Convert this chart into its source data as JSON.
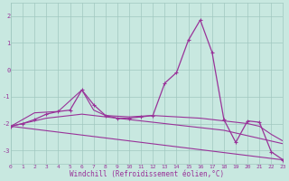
{
  "xlabel": "Windchill (Refroidissement éolien,°C)",
  "xlim": [
    0,
    23
  ],
  "ylim": [
    -3.5,
    2.5
  ],
  "yticks": [
    -3,
    -2,
    -1,
    0,
    1,
    2
  ],
  "xticks": [
    0,
    1,
    2,
    3,
    4,
    5,
    6,
    7,
    8,
    9,
    10,
    11,
    12,
    13,
    14,
    15,
    16,
    17,
    18,
    19,
    20,
    21,
    22,
    23
  ],
  "bg_color": "#c8e8e0",
  "line_color": "#993399",
  "grid_color": "#a0c8c0",
  "main_series": [
    [
      0,
      -2.1
    ],
    [
      1,
      -2.0
    ],
    [
      2,
      -1.85
    ],
    [
      3,
      -1.65
    ],
    [
      4,
      -1.55
    ],
    [
      5,
      -1.5
    ],
    [
      6,
      -0.75
    ],
    [
      7,
      -1.3
    ],
    [
      8,
      -1.7
    ],
    [
      9,
      -1.8
    ],
    [
      10,
      -1.8
    ],
    [
      11,
      -1.75
    ],
    [
      12,
      -1.7
    ],
    [
      13,
      -0.5
    ],
    [
      14,
      -0.1
    ],
    [
      15,
      1.1
    ],
    [
      16,
      1.85
    ],
    [
      17,
      0.65
    ],
    [
      18,
      -1.85
    ],
    [
      19,
      -2.7
    ],
    [
      20,
      -1.9
    ],
    [
      21,
      -1.95
    ],
    [
      22,
      -3.05
    ],
    [
      23,
      -3.35
    ]
  ],
  "line2": [
    [
      0,
      -2.1
    ],
    [
      2,
      -1.6
    ],
    [
      4,
      -1.55
    ],
    [
      6,
      -0.75
    ],
    [
      7,
      -1.5
    ],
    [
      8,
      -1.7
    ],
    [
      10,
      -1.75
    ],
    [
      12,
      -1.7
    ],
    [
      14,
      -1.75
    ],
    [
      16,
      -1.8
    ],
    [
      18,
      -1.9
    ],
    [
      20,
      -2.0
    ],
    [
      21,
      -2.1
    ],
    [
      22,
      -2.4
    ],
    [
      23,
      -2.65
    ]
  ],
  "line3": [
    [
      0,
      -2.1
    ],
    [
      1,
      -2.0
    ],
    [
      2,
      -1.9
    ],
    [
      3,
      -1.8
    ],
    [
      4,
      -1.75
    ],
    [
      5,
      -1.7
    ],
    [
      6,
      -1.65
    ],
    [
      7,
      -1.7
    ],
    [
      8,
      -1.75
    ],
    [
      9,
      -1.8
    ],
    [
      10,
      -1.85
    ],
    [
      11,
      -1.9
    ],
    [
      12,
      -1.95
    ],
    [
      13,
      -2.0
    ],
    [
      14,
      -2.05
    ],
    [
      15,
      -2.1
    ],
    [
      16,
      -2.15
    ],
    [
      17,
      -2.2
    ],
    [
      18,
      -2.25
    ],
    [
      19,
      -2.35
    ],
    [
      20,
      -2.45
    ],
    [
      21,
      -2.55
    ],
    [
      22,
      -2.65
    ],
    [
      23,
      -2.75
    ]
  ],
  "line4": [
    [
      0,
      -2.1
    ],
    [
      23,
      -3.35
    ]
  ]
}
